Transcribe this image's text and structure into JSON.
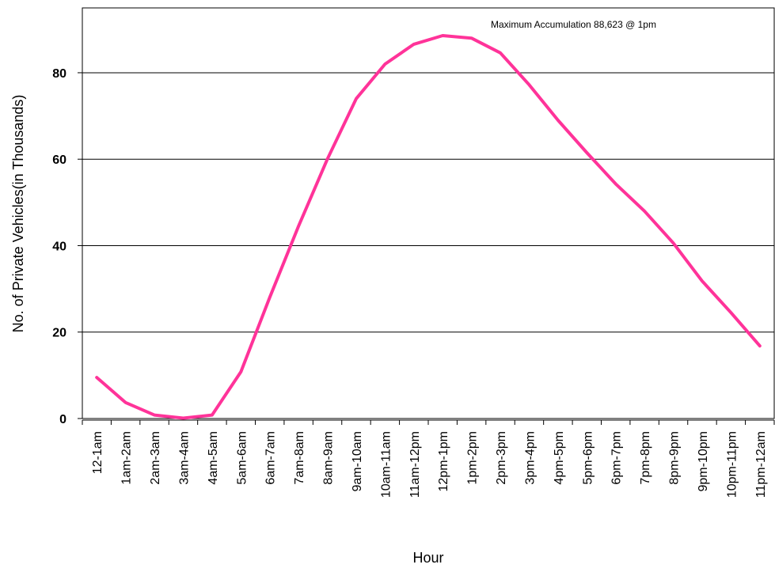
{
  "chart_data": {
    "type": "line",
    "title": "",
    "xlabel": "Hour",
    "ylabel": "No. of Private Vehicles(in Thousands)",
    "ylim": [
      0,
      95
    ],
    "yticks": [
      0,
      20,
      40,
      60,
      80
    ],
    "grid": true,
    "legend": "none",
    "annotation": "Maximum Accumulation 88,623 @ 1pm",
    "categories": [
      "12-1am",
      "1am-2am",
      "2am-3am",
      "3am-4am",
      "4am-5am",
      "5am-6am",
      "6am-7am",
      "7am-8am",
      "8am-9am",
      "9am-10am",
      "10am-11am",
      "11am-12pm",
      "12pm-1pm",
      "1pm-2pm",
      "2pm-3pm",
      "3pm-4pm",
      "4pm-5pm",
      "5pm-6pm",
      "6pm-7pm",
      "7pm-8pm",
      "8pm-9pm",
      "9pm-10pm",
      "10pm-11pm",
      "11pm-12am"
    ],
    "series": [
      {
        "color": "#ff3399",
        "values": [
          9.5,
          3.7,
          0.8,
          0.1,
          0.8,
          10.8,
          28,
          44.5,
          60,
          74,
          82,
          86.6,
          88.6,
          88,
          84.6,
          77.2,
          69,
          61.5,
          54.3,
          48,
          40.6,
          31.8,
          24.5,
          16.8
        ]
      }
    ]
  }
}
